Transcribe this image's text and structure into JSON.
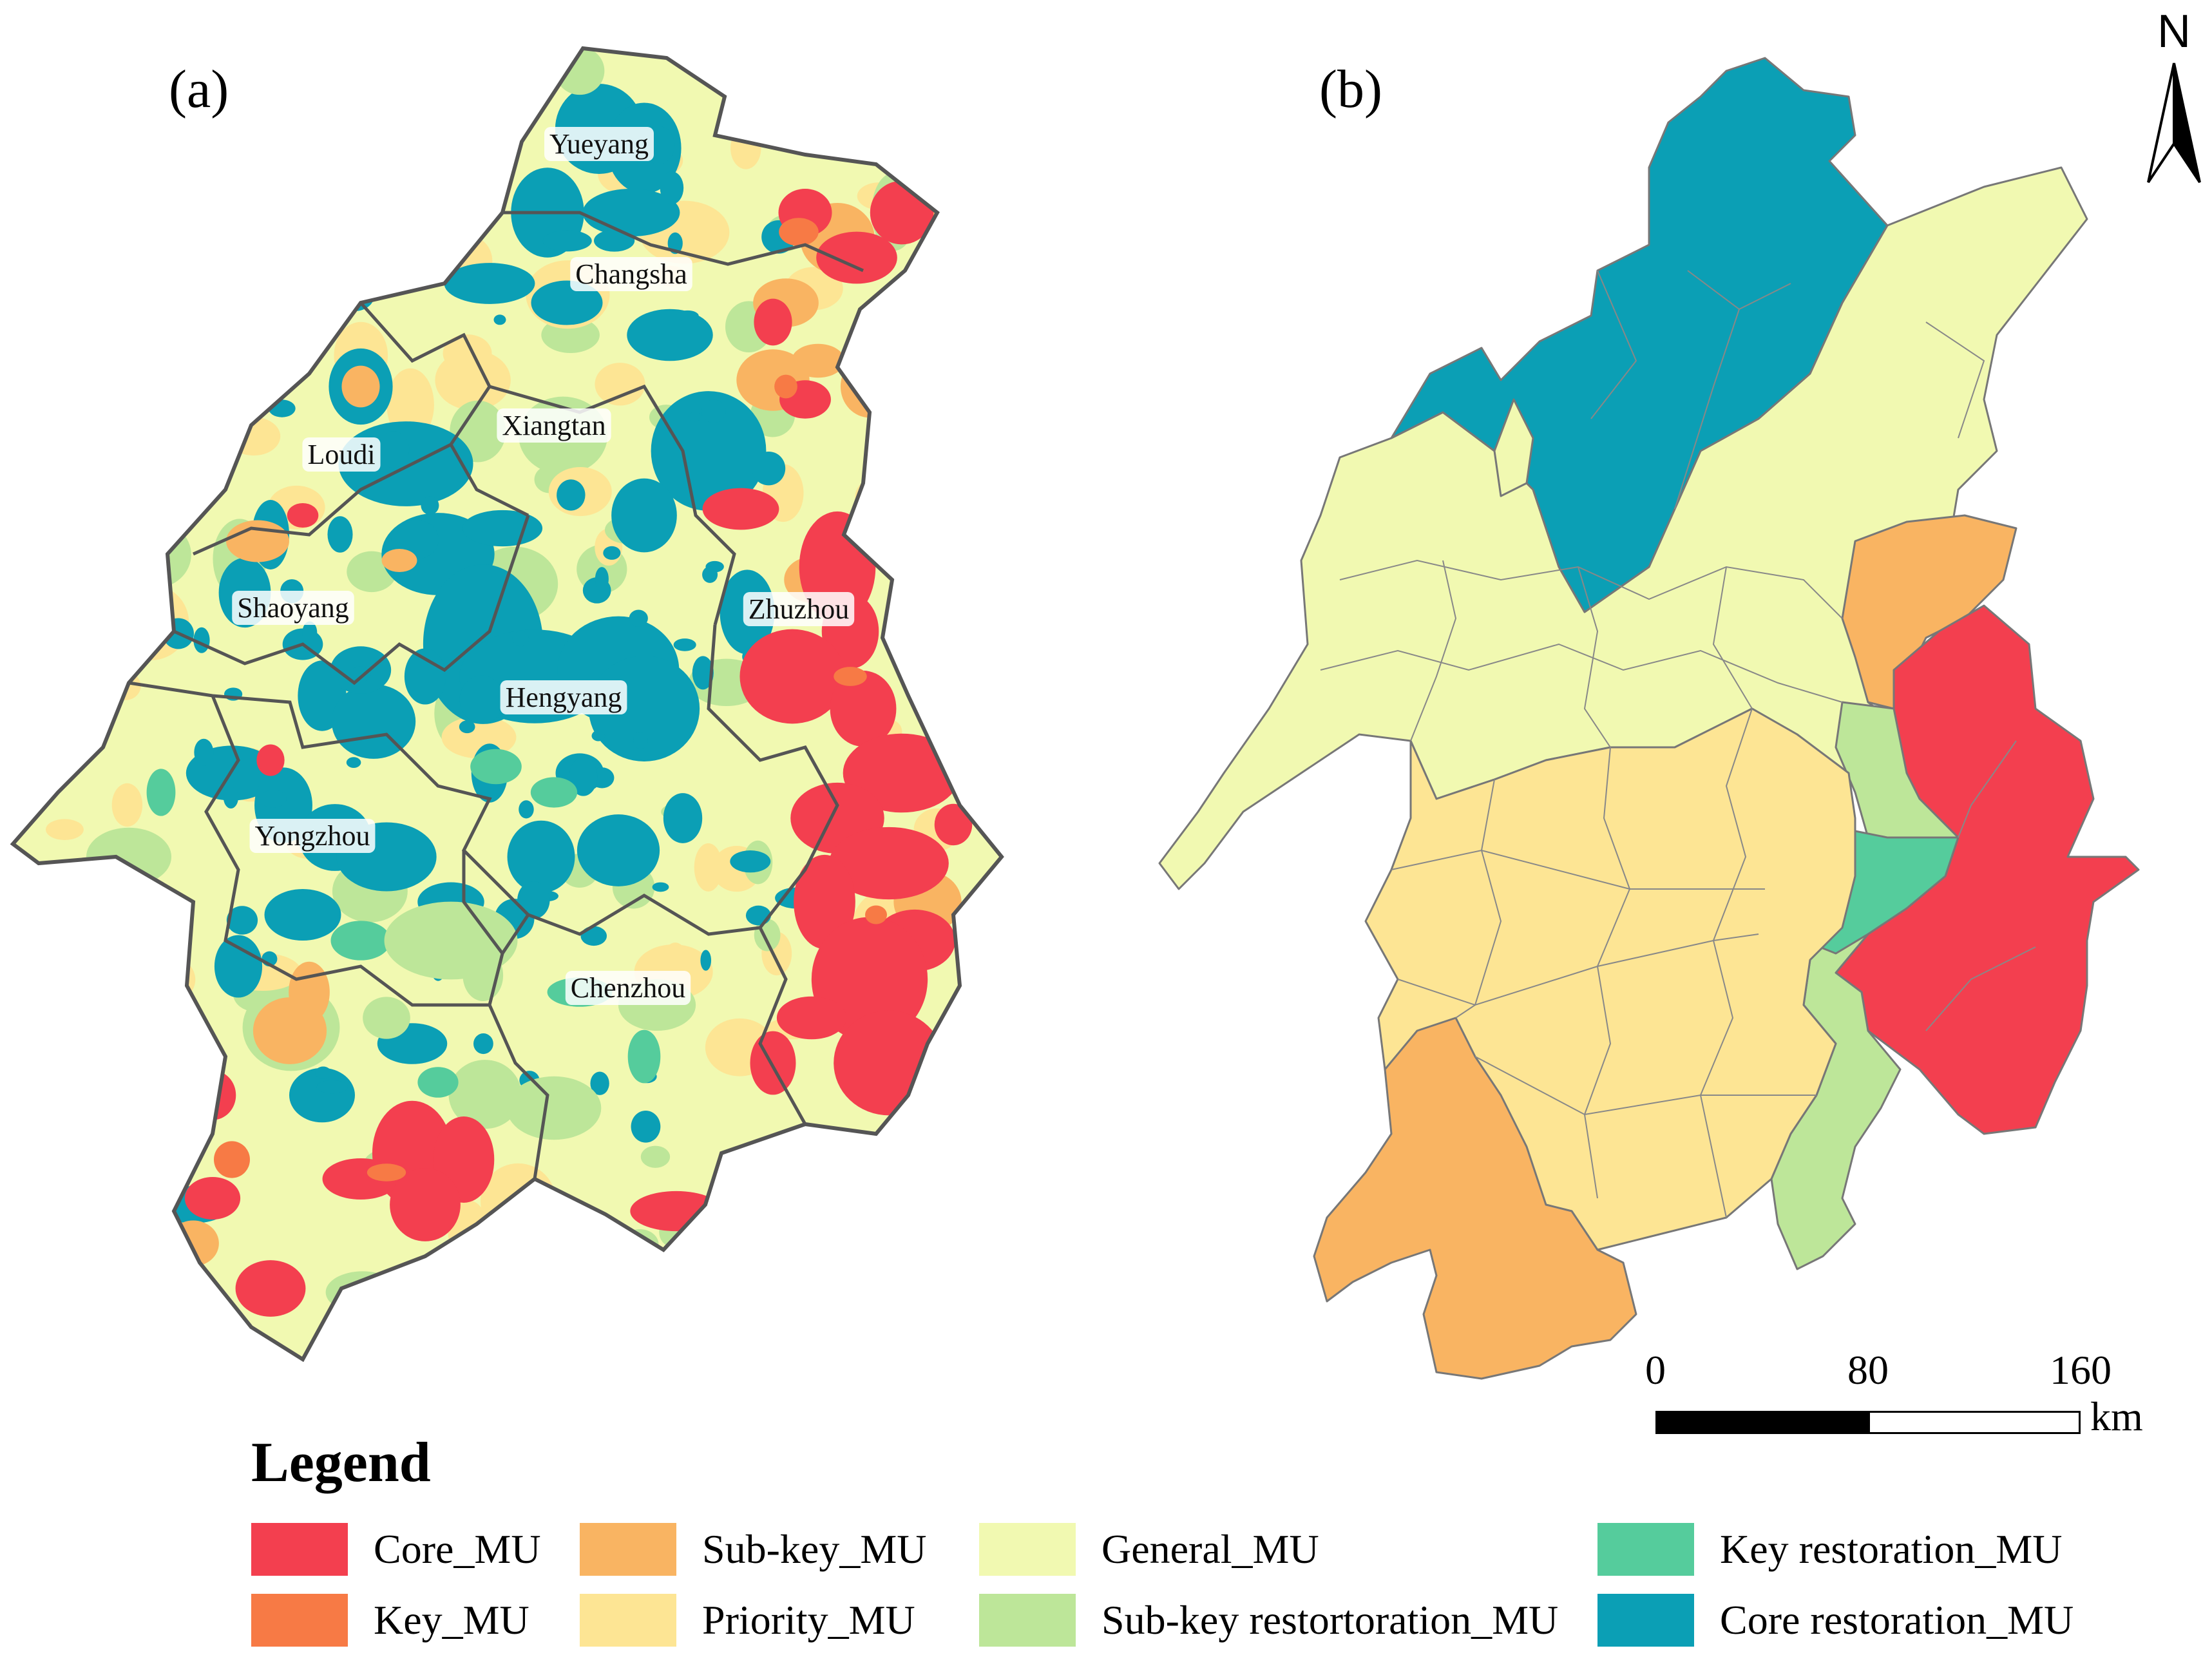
{
  "panels": {
    "a": {
      "label": "(a)"
    },
    "b": {
      "label": "(b)"
    }
  },
  "cities": [
    "Yueyang",
    "Changsha",
    "Xiangtan",
    "Loudi",
    "Shaoyang",
    "Zhuzhou",
    "Hengyang",
    "Yongzhou",
    "Chenzhou"
  ],
  "legend": {
    "title": "Legend",
    "items": [
      {
        "label": "Core_MU",
        "color": "#f33f4f"
      },
      {
        "label": "Key_MU",
        "color": "#f77a45"
      },
      {
        "label": "Sub-key_MU",
        "color": "#f9b462"
      },
      {
        "label": "Priority_MU",
        "color": "#fde594"
      },
      {
        "label": "General_MU",
        "color": "#f1f9b1"
      },
      {
        "label": "Sub-key restortoration_MU",
        "color": "#bde699"
      },
      {
        "label": "Key restoration_MU",
        "color": "#55cc9c"
      },
      {
        "label": "Core restoration_MU",
        "color": "#0b9fb5"
      }
    ]
  },
  "scale_bar": {
    "ticks": [
      "0",
      "80",
      "160"
    ],
    "unit": "km"
  },
  "north_arrow": {
    "label": "N"
  }
}
